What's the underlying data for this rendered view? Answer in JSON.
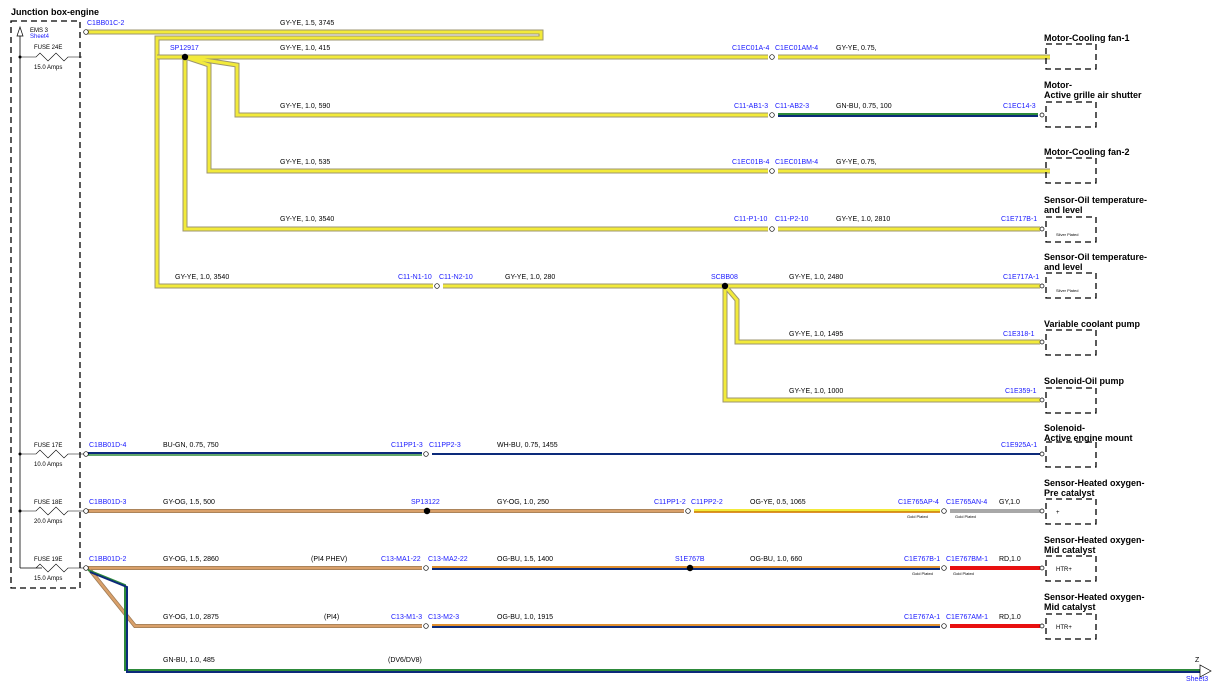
{
  "title": "Junction box-engine",
  "ems": {
    "label": "EMS 3",
    "sheet": "Sheet4"
  },
  "fuses": [
    {
      "name": "FUSE 24E",
      "rating": "15.0 Amps"
    },
    {
      "name": "FUSE 17E",
      "rating": "10.0 Amps"
    },
    {
      "name": "FUSE 18E",
      "rating": "20.0 Amps"
    },
    {
      "name": "FUSE 19E",
      "rating": "15.0 Amps"
    }
  ],
  "colors": {
    "yellow": "#f2ea3a",
    "yellow_edge": "#9c9670",
    "blue_dark": "#0c2a7a",
    "green": "#2d8a3a",
    "orange": "#d9a06a",
    "red": "#e81010",
    "gray": "#a8a8a8"
  },
  "labels": {
    "c1bb01c2": "C1BB01C-2",
    "w_top": "GY-YE, 1.5, 3745",
    "sp12917": "SP12917",
    "w_fan1": "GY-YE, 1.0, 415",
    "c1ec01a4": "C1EC01A-4",
    "c1ec01am4": "C1EC01AM-4",
    "w_fan1b": "GY-YE, 0.75,",
    "w_grille": "GY-YE, 1.0, 590",
    "c11ab13": "C11-AB1-3",
    "c11ab23": "C11-AB2-3",
    "w_grilleb": "GN-BU, 0.75, 100",
    "c1ec143": "C1EC14-3",
    "w_fan2": "GY-YE, 1.0, 535",
    "c1ec01b4": "C1EC01B-4",
    "c1ec01bm4": "C1EC01BM-4",
    "w_fan2b": "GY-YE, 0.75,",
    "w_oil1": "GY-YE, 1.0, 3540",
    "c11p110": "C11-P1-10",
    "c11p210": "C11-P2-10",
    "w_oil1b": "GY-YE, 1.0, 2810",
    "c1e717b1": "C1E717B-1",
    "w_oil2": "GY-YE, 1.0, 3540",
    "c11n110": "C11-N1-10",
    "c11n210": "C11-N2-10",
    "w_oil2b": "GY-YE, 1.0, 280",
    "scbb08": "SCBB08",
    "w_oil2c": "GY-YE, 1.0, 2480",
    "c1e717a1": "C1E717A-1",
    "w_pump": "GY-YE, 1.0, 1495",
    "c1e3181": "C1E318-1",
    "w_sol": "GY-YE, 1.0, 1000",
    "c1e3591": "C1E359-1",
    "c1bb01d4": "C1BB01D-4",
    "w_mount": "BU-GN, 0.75, 750",
    "c11pp13": "C11PP1-3",
    "c11pp23": "C11PP2-3",
    "w_mountb": "WH-BU, 0.75, 1455",
    "c1e925a1": "C1E925A-1",
    "c1bb01d3": "C1BB01D-3",
    "w_pre": "GY-OG, 1.5, 500",
    "sp13122": "SP13122",
    "w_preb": "GY-OG, 1.0, 250",
    "c11pp12": "C11PP1-2",
    "c11pp22": "C11PP2-2",
    "w_prec": "OG-YE, 0.5, 1065",
    "c1e765ap4": "C1E765AP-4",
    "c1e765an4": "C1E765AN-4",
    "w_pred": "GY,1.0",
    "c1bb01d2": "C1BB01D-2",
    "w_mid1": "GY-OG, 1.5, 2860",
    "pi4phev": "(PI4 PHEV)",
    "c13ma122": "C13-MA1-22",
    "c13ma222": "C13-MA2-22",
    "w_mid1b": "OG-BU, 1.5, 1400",
    "s1e767b": "S1E767B",
    "w_mid1c": "OG-BU, 1.0, 660",
    "c1e767b1": "C1E767B-1",
    "c1e767bm1": "C1E767BM-1",
    "w_mid1d": "RD,1.0",
    "w_mid2": "GY-OG, 1.0, 2875",
    "pi4": "(PI4)",
    "c13m13": "C13-M1-3",
    "c13m23": "C13-M2-3",
    "w_mid2b": "OG-BU, 1.0, 1915",
    "c1e767a1": "C1E767A-1",
    "c1e767am1": "C1E767AM-1",
    "w_mid2c": "RD,1.0",
    "w_bottom": "GN-BU, 1.0, 485",
    "dv6dv8": "(DV6/DV8)",
    "z": "Z",
    "sheet3": "Sheet3",
    "silver_plated": "Silver Plated",
    "gold_plated": "Gold Plated",
    "htr_plus": "HTR+",
    "plus": "+"
  },
  "components": {
    "fan1": "Motor-Cooling fan-1",
    "grille1": "Motor-",
    "grille2": "Active grille air shutter",
    "fan2": "Motor-Cooling fan-2",
    "oil1a": "Sensor-Oil temperature-",
    "oil1b": "and level",
    "oil2a": "Sensor-Oil temperature-",
    "oil2b": "and level",
    "pump": "Variable coolant pump",
    "sol": "Solenoid-Oil pump",
    "mount1": "Solenoid-",
    "mount2": "Active engine mount",
    "pre1": "Sensor-Heated oxygen-",
    "pre2": "Pre catalyst",
    "mid1a": "Sensor-Heated oxygen-",
    "mid1b": "Mid catalyst",
    "mid2a": "Sensor-Heated oxygen-",
    "mid2b": "Mid catalyst"
  }
}
